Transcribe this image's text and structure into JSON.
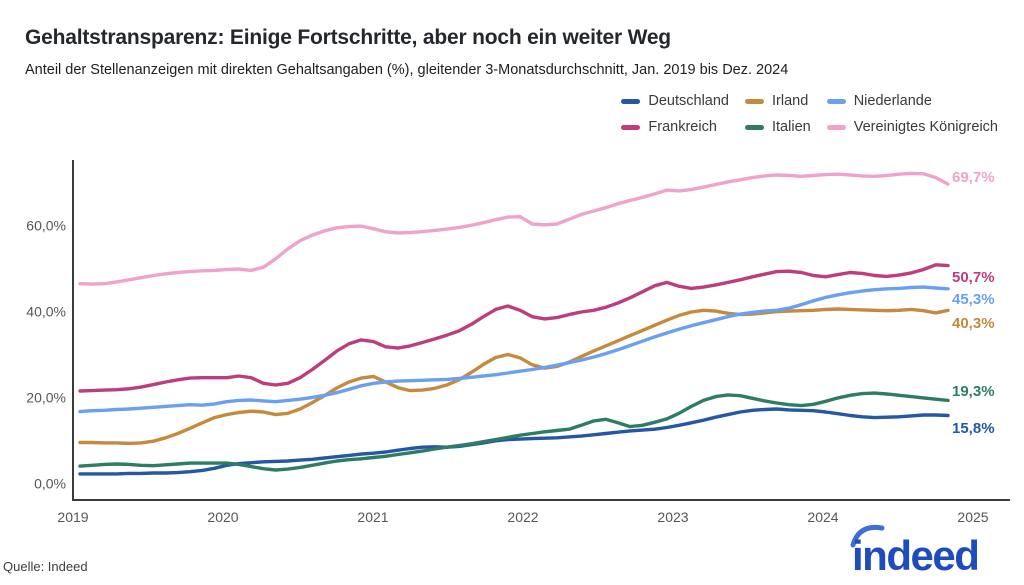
{
  "header": {
    "title": "Gehaltstransparenz: Einige Fortschritte, aber noch ein weiter Weg",
    "subtitle": "Anteil der Stellenanzeigen mit direkten Gehaltsangaben (%), gleitender 3-Monatsdurchschnitt, Jan. 2019 bis Dez. 2024"
  },
  "source_label": "Quelle: Indeed",
  "logo_text": "indeed",
  "logo_color": "#1E4BBE",
  "chart_data": {
    "type": "line",
    "title": "Gehaltstransparenz: Einige Fortschritte, aber noch ein weiter Weg",
    "ylabel": "Anteil der Stellenanzeigen mit direkten Gehaltsangaben (%)",
    "x_unit": "Monat (gleitender 3-Monatsdurchschnitt)",
    "x_range": [
      "Jan. 2019",
      "Dez. 2024"
    ],
    "x_tick_labels": [
      "2019",
      "2020",
      "2021",
      "2022",
      "2023",
      "2024",
      "2025"
    ],
    "y_ticks": [
      0,
      20,
      40,
      60
    ],
    "y_tick_labels": [
      "0,0%",
      "20,0%",
      "40,0%",
      "60,0%"
    ],
    "ylim": [
      0,
      75
    ],
    "grid": false,
    "legend_position": "top-right",
    "series": [
      {
        "name": "Deutschland",
        "color": "#2557A5",
        "end_label": "15,8%",
        "end_value": 15.8,
        "values": [
          2.2,
          2.2,
          2.2,
          2.2,
          2.3,
          2.3,
          2.4,
          2.4,
          2.5,
          2.7,
          3.0,
          3.5,
          4.2,
          4.6,
          4.8,
          5.0,
          5.1,
          5.2,
          5.4,
          5.6,
          5.9,
          6.2,
          6.5,
          6.8,
          7.0,
          7.3,
          7.7,
          8.1,
          8.4,
          8.5,
          8.4,
          8.6,
          9.0,
          9.4,
          9.9,
          10.2,
          10.3,
          10.4,
          10.5,
          10.6,
          10.8,
          11.0,
          11.3,
          11.6,
          11.9,
          12.2,
          12.4,
          12.6,
          13.0,
          13.5,
          14.1,
          14.7,
          15.4,
          16.0,
          16.6,
          17.0,
          17.2,
          17.3,
          17.1,
          17.0,
          16.9,
          16.6,
          16.2,
          15.8,
          15.5,
          15.3,
          15.4,
          15.5,
          15.7,
          15.9,
          15.9,
          15.8
        ]
      },
      {
        "name": "Irland",
        "color": "#C68A3E",
        "end_label": "40,3%",
        "end_value": 40.3,
        "values": [
          9.5,
          9.5,
          9.4,
          9.4,
          9.3,
          9.4,
          9.8,
          10.6,
          11.6,
          12.8,
          14.1,
          15.3,
          16.0,
          16.5,
          16.8,
          16.6,
          16.0,
          16.3,
          17.3,
          18.8,
          20.4,
          22.2,
          23.6,
          24.5,
          24.9,
          23.6,
          22.3,
          21.6,
          21.7,
          22.1,
          22.9,
          24.1,
          25.8,
          27.7,
          29.3,
          30.0,
          29.2,
          27.6,
          26.8,
          27.2,
          28.2,
          29.5,
          30.8,
          32.0,
          33.2,
          34.4,
          35.6,
          36.8,
          38.0,
          39.1,
          39.9,
          40.3,
          40.1,
          39.6,
          39.3,
          39.4,
          39.7,
          40.0,
          40.1,
          40.2,
          40.3,
          40.5,
          40.6,
          40.5,
          40.4,
          40.3,
          40.2,
          40.3,
          40.5,
          40.2,
          39.7,
          40.3
        ]
      },
      {
        "name": "Niederlande",
        "color": "#6BA0F1",
        "end_label": "45,3%",
        "end_value": 45.3,
        "values": [
          16.7,
          16.9,
          17.0,
          17.2,
          17.3,
          17.5,
          17.7,
          17.9,
          18.1,
          18.3,
          18.2,
          18.5,
          19.0,
          19.3,
          19.4,
          19.2,
          19.0,
          19.3,
          19.6,
          20.0,
          20.5,
          21.1,
          21.9,
          22.7,
          23.3,
          23.6,
          23.8,
          23.9,
          24.0,
          24.1,
          24.2,
          24.4,
          24.7,
          25.0,
          25.3,
          25.7,
          26.1,
          26.5,
          27.0,
          27.5,
          28.1,
          28.7,
          29.4,
          30.2,
          31.1,
          32.1,
          33.1,
          34.1,
          35.0,
          35.9,
          36.7,
          37.4,
          38.1,
          38.8,
          39.4,
          39.8,
          40.1,
          40.3,
          40.8,
          41.6,
          42.5,
          43.3,
          43.9,
          44.4,
          44.8,
          45.1,
          45.3,
          45.4,
          45.6,
          45.7,
          45.5,
          45.3
        ]
      },
      {
        "name": "Frankreich",
        "color": "#BE3D7B",
        "end_label": "50,7%",
        "end_value": 50.7,
        "values": [
          21.5,
          21.6,
          21.7,
          21.8,
          22.0,
          22.4,
          23.0,
          23.6,
          24.1,
          24.5,
          24.6,
          24.6,
          24.6,
          25.0,
          24.6,
          23.3,
          22.9,
          23.3,
          24.6,
          26.5,
          28.6,
          30.8,
          32.5,
          33.4,
          33.0,
          31.8,
          31.5,
          32.0,
          32.8,
          33.6,
          34.5,
          35.5,
          37.0,
          38.8,
          40.5,
          41.3,
          40.3,
          38.8,
          38.3,
          38.6,
          39.3,
          39.9,
          40.3,
          41.0,
          42.0,
          43.2,
          44.6,
          46.0,
          46.8,
          45.9,
          45.4,
          45.7,
          46.2,
          46.8,
          47.4,
          48.1,
          48.7,
          49.3,
          49.4,
          49.1,
          48.4,
          48.1,
          48.6,
          49.1,
          48.9,
          48.4,
          48.2,
          48.5,
          49.0,
          49.8,
          50.9,
          50.7
        ]
      },
      {
        "name": "Italien",
        "color": "#2E7D63",
        "end_label": "19,3%",
        "end_value": 19.3,
        "values": [
          4.0,
          4.2,
          4.4,
          4.5,
          4.4,
          4.2,
          4.1,
          4.3,
          4.5,
          4.7,
          4.7,
          4.7,
          4.7,
          4.4,
          3.9,
          3.4,
          3.1,
          3.3,
          3.7,
          4.2,
          4.7,
          5.2,
          5.5,
          5.7,
          6.0,
          6.3,
          6.7,
          7.1,
          7.5,
          8.0,
          8.4,
          8.8,
          9.2,
          9.7,
          10.2,
          10.7,
          11.2,
          11.6,
          12.0,
          12.3,
          12.6,
          13.5,
          14.5,
          14.9,
          14.1,
          13.2,
          13.5,
          14.2,
          15.0,
          16.3,
          17.9,
          19.3,
          20.2,
          20.6,
          20.4,
          19.8,
          19.2,
          18.7,
          18.3,
          18.1,
          18.4,
          19.1,
          19.9,
          20.5,
          20.9,
          21.0,
          20.8,
          20.5,
          20.2,
          19.9,
          19.6,
          19.3
        ]
      },
      {
        "name": "Vereinigtes Königreich",
        "color": "#F0A3C8",
        "end_label": "69,7%",
        "end_value": 69.7,
        "values": [
          46.5,
          46.4,
          46.5,
          46.9,
          47.4,
          47.9,
          48.4,
          48.8,
          49.1,
          49.3,
          49.5,
          49.6,
          49.8,
          49.9,
          49.6,
          50.3,
          52.3,
          54.6,
          56.5,
          57.8,
          58.8,
          59.5,
          59.8,
          59.9,
          59.3,
          58.6,
          58.3,
          58.4,
          58.6,
          58.9,
          59.2,
          59.6,
          60.1,
          60.7,
          61.4,
          62.0,
          62.1,
          60.4,
          60.2,
          60.4,
          61.5,
          62.6,
          63.4,
          64.2,
          65.1,
          65.9,
          66.6,
          67.4,
          68.3,
          68.1,
          68.4,
          69.0,
          69.6,
          70.2,
          70.7,
          71.2,
          71.6,
          71.8,
          71.7,
          71.5,
          71.7,
          71.9,
          72.0,
          71.8,
          71.6,
          71.5,
          71.7,
          72.0,
          72.2,
          72.1,
          71.2,
          69.7
        ]
      }
    ]
  }
}
